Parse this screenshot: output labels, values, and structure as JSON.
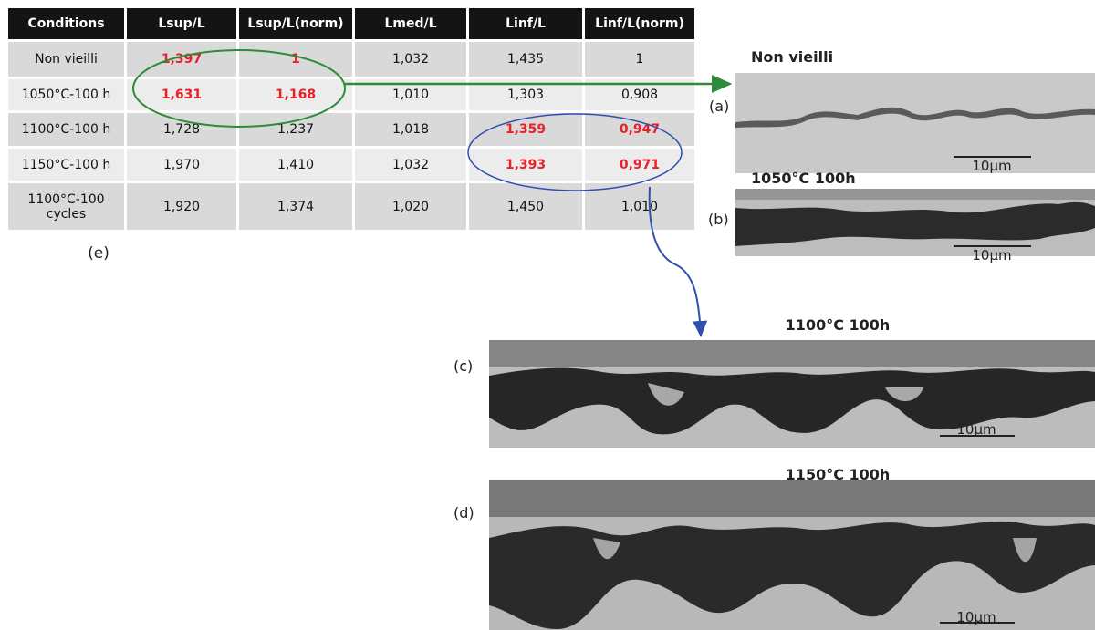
{
  "table": {
    "headers": [
      "Conditions",
      "Lsup/L",
      "Lsup/L(norm)",
      "Lmed/L",
      "Linf/L",
      "Linf/L(norm)"
    ],
    "rows": [
      [
        "Non vieilli",
        "1,397",
        "1",
        "1,032",
        "1,435",
        "1"
      ],
      [
        "1050°C-100 h",
        "1,631",
        "1,168",
        "1,010",
        "1,303",
        "0,908"
      ],
      [
        "1100°C-100 h",
        "1,728",
        "1,237",
        "1,018",
        "1,359",
        "0,947"
      ],
      [
        "1150°C-100 h",
        "1,970",
        "1,410",
        "1,032",
        "1,393",
        "0,971"
      ],
      [
        "1100°C-100 cycles",
        "1,920",
        "1,374",
        "1,020",
        "1,450",
        "1,010"
      ]
    ],
    "highlighted": [
      [
        0,
        1
      ],
      [
        0,
        2
      ],
      [
        1,
        1
      ],
      [
        1,
        2
      ],
      [
        2,
        4
      ],
      [
        2,
        5
      ],
      [
        3,
        4
      ],
      [
        3,
        5
      ]
    ],
    "highlight_color": "#e8202a",
    "label": "(e)"
  },
  "panels": [
    {
      "label": "(a)",
      "title": "Non vieilli",
      "scale": "10µm"
    },
    {
      "label": "(b)",
      "title": "1050°C 100h",
      "scale": "10µm"
    },
    {
      "label": "(c)",
      "title": "1100°C 100h",
      "scale": "10µm"
    },
    {
      "label": "(d)",
      "title": "1150°C 100h",
      "scale": "10µm"
    }
  ]
}
